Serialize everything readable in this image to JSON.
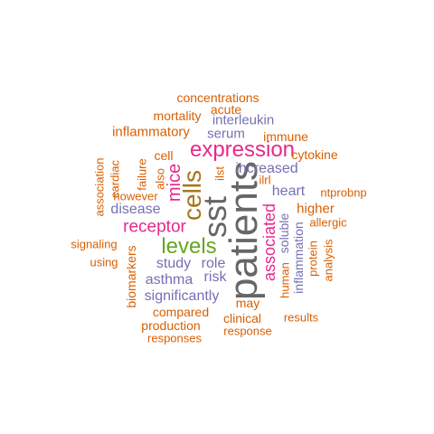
{
  "colors": {
    "orange": "#d95f02",
    "purple": "#7570b3",
    "magenta": "#e7298a",
    "green": "#66a61e",
    "brown": "#a6761d",
    "gray": "#666666"
  },
  "words": [
    {
      "text": "patients",
      "color": "#666666"
    },
    {
      "text": "sst",
      "color": "#666666"
    },
    {
      "text": "cells",
      "color": "#a6761d"
    },
    {
      "text": "expression",
      "color": "#e7298a"
    },
    {
      "text": "levels",
      "color": "#66a61e"
    },
    {
      "text": "mice",
      "color": "#e7298a"
    },
    {
      "text": "receptor",
      "color": "#e7298a"
    },
    {
      "text": "associated",
      "color": "#e7298a"
    },
    {
      "text": "increased",
      "color": "#7570b3"
    },
    {
      "text": "heart",
      "color": "#7570b3"
    },
    {
      "text": "study",
      "color": "#7570b3"
    },
    {
      "text": "asthma",
      "color": "#7570b3"
    },
    {
      "text": "role",
      "color": "#7570b3"
    },
    {
      "text": "risk",
      "color": "#7570b3"
    },
    {
      "text": "significantly",
      "color": "#7570b3"
    },
    {
      "text": "disease",
      "color": "#7570b3"
    },
    {
      "text": "serum",
      "color": "#7570b3"
    },
    {
      "text": "interleukin",
      "color": "#7570b3"
    },
    {
      "text": "soluble",
      "color": "#7570b3"
    },
    {
      "text": "inflammation",
      "color": "#7570b3"
    },
    {
      "text": "higher",
      "color": "#d95f02"
    },
    {
      "text": "inflammatory",
      "color": "#d95f02"
    },
    {
      "text": "immune",
      "color": "#d95f02"
    },
    {
      "text": "cytokine",
      "color": "#d95f02"
    },
    {
      "text": "mortality",
      "color": "#d95f02"
    },
    {
      "text": "acute",
      "color": "#d95f02"
    },
    {
      "text": "concentrations",
      "color": "#d95f02"
    },
    {
      "text": "cell",
      "color": "#d95f02"
    },
    {
      "text": "compared",
      "color": "#d95f02"
    },
    {
      "text": "may",
      "color": "#d95f02"
    },
    {
      "text": "clinical",
      "color": "#d95f02"
    },
    {
      "text": "production",
      "color": "#d95f02"
    },
    {
      "text": "responses",
      "color": "#d95f02"
    },
    {
      "text": "response",
      "color": "#d95f02"
    },
    {
      "text": "results",
      "color": "#d95f02"
    },
    {
      "text": "human",
      "color": "#d95f02"
    },
    {
      "text": "protein",
      "color": "#d95f02"
    },
    {
      "text": "analysis",
      "color": "#d95f02"
    },
    {
      "text": "allergic",
      "color": "#d95f02"
    },
    {
      "text": "ntprobnp",
      "color": "#d95f02"
    },
    {
      "text": "signaling",
      "color": "#d95f02"
    },
    {
      "text": "using",
      "color": "#d95f02"
    },
    {
      "text": "biomarkers",
      "color": "#d95f02"
    },
    {
      "text": "however",
      "color": "#d95f02"
    },
    {
      "text": "association",
      "color": "#d95f02"
    },
    {
      "text": "cardiac",
      "color": "#d95f02"
    },
    {
      "text": "failure",
      "color": "#d95f02"
    },
    {
      "text": "also",
      "color": "#d95f02"
    },
    {
      "text": "ilst",
      "color": "#d95f02"
    },
    {
      "text": "ilrl",
      "color": "#d95f02"
    }
  ]
}
